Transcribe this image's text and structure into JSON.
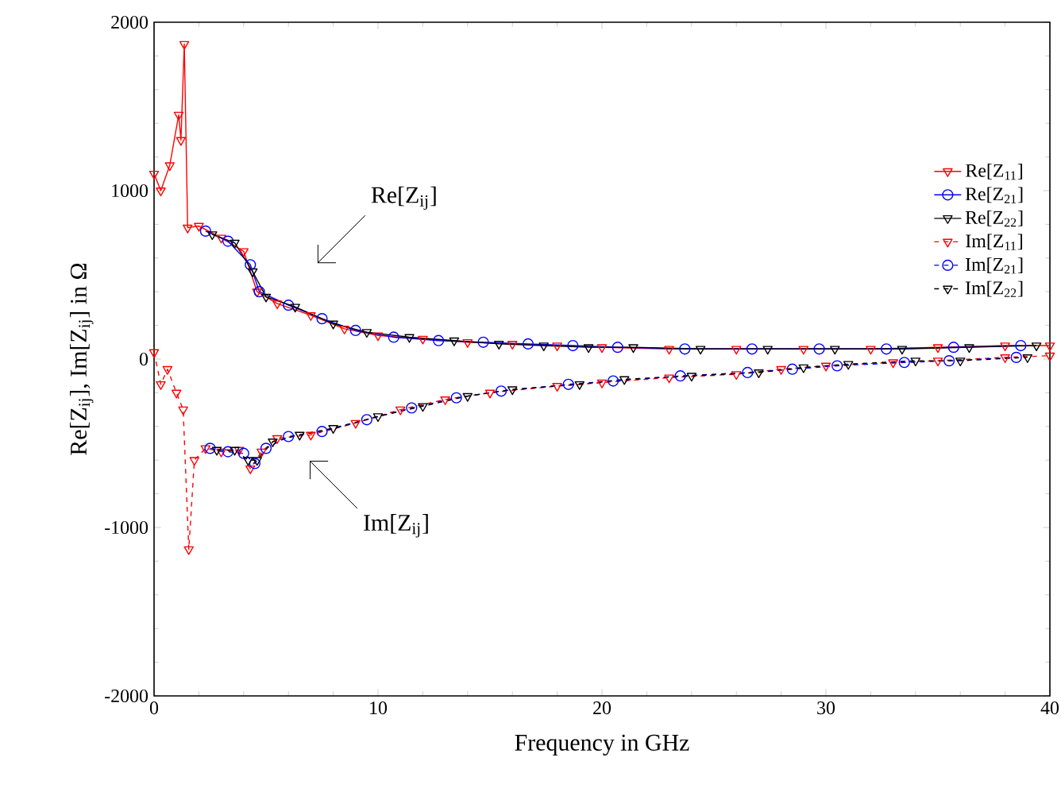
{
  "chart_data": {
    "type": "line",
    "xlabel": "Frequency in GHz",
    "ylabel": "Re[Z$_{ij}$], Im[Z$_{ij}$] in Ω",
    "xlim": [
      0,
      40
    ],
    "ylim": [
      -2000,
      2000
    ],
    "xticks": [
      0,
      10,
      20,
      30,
      40
    ],
    "yticks": [
      -2000,
      -1000,
      0,
      1000,
      2000
    ],
    "grid": false,
    "legend": "right",
    "annotations": [
      "Re[Z$_{ij}$]",
      "Im[Z$_{ij}$]"
    ],
    "series": [
      {
        "name": "Re[Z$_{11}$]",
        "color": "#ff0000",
        "marker": "triangle",
        "line_style": "solid",
        "x": [
          0,
          0.3,
          0.7,
          1.1,
          1.2,
          1.35,
          1.5,
          2,
          3,
          4,
          4.6,
          5.5,
          7,
          8.5,
          10,
          12,
          14,
          16,
          18,
          20,
          23,
          26,
          29,
          32,
          35,
          38,
          40
        ],
        "values": [
          1100,
          1000,
          1150,
          1450,
          1300,
          1870,
          780,
          790,
          720,
          640,
          400,
          330,
          260,
          180,
          140,
          120,
          100,
          90,
          80,
          70,
          60,
          60,
          60,
          60,
          70,
          80,
          80
        ]
      },
      {
        "name": "Re[Z$_{21}$]",
        "color": "#0000ff",
        "marker": "circle",
        "line_style": "solid",
        "x": [
          2.3,
          3.3,
          4.3,
          4.7,
          6,
          7.5,
          9,
          10.7,
          12.7,
          14.7,
          16.7,
          18.7,
          20.7,
          23.7,
          26.7,
          29.7,
          32.7,
          35.7,
          38.7
        ],
        "values": [
          760,
          700,
          560,
          400,
          320,
          240,
          170,
          130,
          110,
          100,
          90,
          80,
          70,
          60,
          60,
          60,
          60,
          70,
          80
        ]
      },
      {
        "name": "Re[Z$_{22}$]",
        "color": "#000000",
        "marker": "triangle",
        "line_style": "solid",
        "x": [
          2.6,
          3.6,
          4.4,
          5,
          6.3,
          8,
          9.5,
          11.4,
          13.4,
          15.4,
          17.4,
          19.4,
          21.4,
          24.4,
          27.4,
          30.4,
          33.4,
          36.4,
          39.4
        ],
        "values": [
          740,
          690,
          520,
          370,
          310,
          210,
          160,
          130,
          110,
          90,
          80,
          70,
          70,
          60,
          60,
          60,
          60,
          70,
          80
        ]
      },
      {
        "name": "Im[Z$_{11}$]",
        "color": "#ff0000",
        "marker": "triangle",
        "line_style": "dashed",
        "x": [
          0,
          0.3,
          0.6,
          1,
          1.3,
          1.55,
          1.8,
          2.3,
          3,
          3.8,
          4.3,
          4.8,
          5.5,
          7,
          9,
          11,
          13,
          15,
          18,
          20,
          23,
          26,
          28,
          30,
          33,
          35,
          38,
          40
        ],
        "values": [
          40,
          -150,
          -60,
          -200,
          -300,
          -1130,
          -600,
          -530,
          -550,
          -540,
          -650,
          -550,
          -470,
          -450,
          -380,
          -300,
          -240,
          -200,
          -160,
          -140,
          -110,
          -90,
          -60,
          -40,
          -20,
          -10,
          10,
          20
        ]
      },
      {
        "name": "Im[Z$_{21}$]",
        "color": "#0000ff",
        "marker": "circle",
        "line_style": "dashed",
        "x": [
          2.5,
          3.3,
          4,
          4.5,
          5,
          6,
          7.5,
          9.5,
          11.5,
          13.5,
          15.5,
          18.5,
          20.5,
          23.5,
          26.5,
          28.5,
          30.5,
          33.5,
          35.5,
          38.5
        ],
        "values": [
          -530,
          -550,
          -560,
          -620,
          -530,
          -460,
          -430,
          -360,
          -290,
          -230,
          -190,
          -150,
          -130,
          -100,
          -80,
          -60,
          -40,
          -20,
          -10,
          10
        ]
      },
      {
        "name": "Im[Z$_{22}$]",
        "color": "#000000",
        "marker": "triangle",
        "line_style": "dashed",
        "x": [
          2.8,
          3.6,
          4.2,
          4.6,
          5.3,
          6.5,
          8,
          10,
          12,
          14,
          16,
          19,
          21,
          24,
          27,
          29,
          31,
          34,
          36,
          39
        ],
        "values": [
          -540,
          -540,
          -600,
          -600,
          -490,
          -450,
          -410,
          -340,
          -280,
          -220,
          -180,
          -150,
          -120,
          -100,
          -80,
          -50,
          -30,
          -10,
          -10,
          10
        ]
      }
    ]
  }
}
